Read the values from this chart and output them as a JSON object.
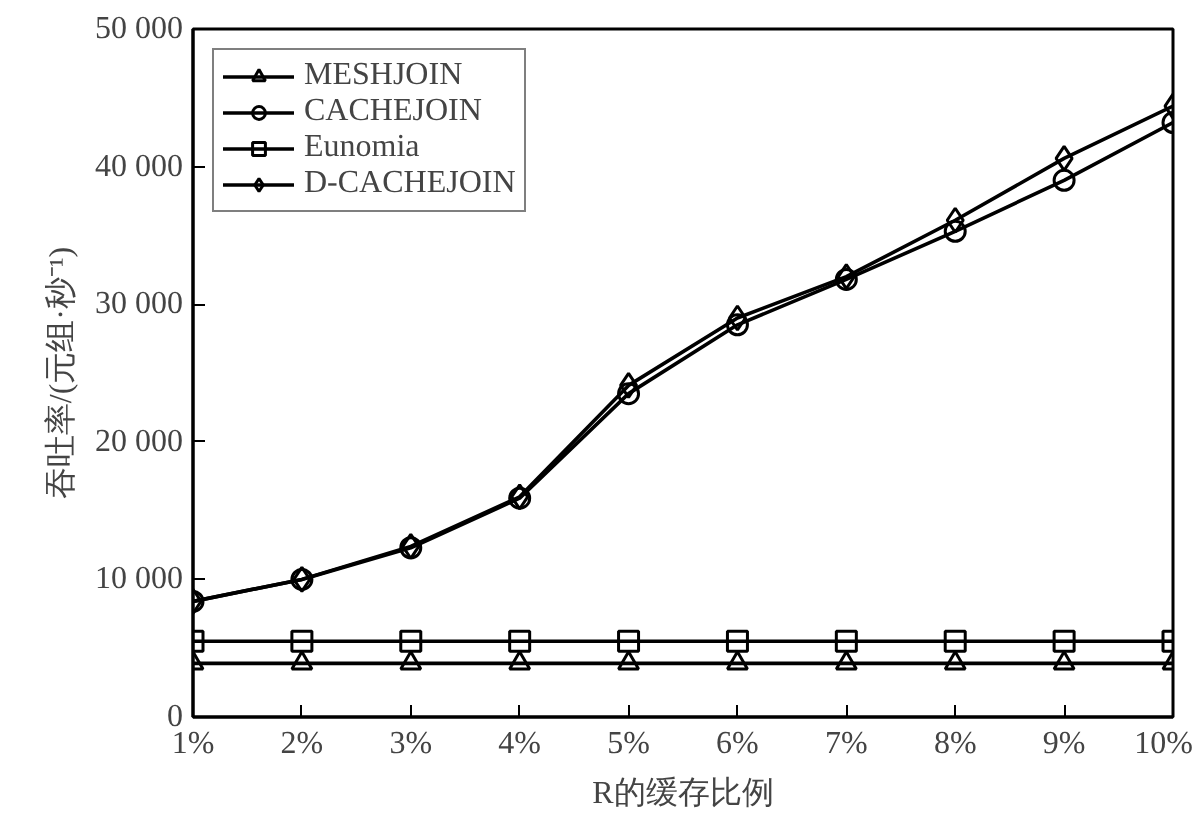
{
  "chart_data": {
    "type": "line",
    "xlabel": "R的缓存比例",
    "ylabel": "吞吐率/(元组·秒⁻¹)",
    "categories": [
      "1%",
      "2%",
      "3%",
      "4%",
      "5%",
      "6%",
      "7%",
      "8%",
      "9%",
      "10%"
    ],
    "ylim": [
      0,
      50000
    ],
    "yticks": [
      0,
      {
        "value": 10000,
        "label": "10 000"
      },
      {
        "value": 20000,
        "label": "20 000"
      },
      {
        "value": 30000,
        "label": "30 000"
      },
      {
        "value": 40000,
        "label": "40 000"
      },
      {
        "value": 50000,
        "label": "50 000"
      }
    ],
    "grid": false,
    "legend": "top left",
    "line_style": "solid",
    "series": [
      {
        "name": "MESHJOIN",
        "color": "#000000",
        "marker": "triangle",
        "values": [
          3900,
          3900,
          3900,
          3900,
          3900,
          3900,
          3900,
          3900,
          3900,
          3900
        ]
      },
      {
        "name": "CACHEJOIN",
        "color": "#000000",
        "marker": "circle",
        "values": [
          8400,
          10000,
          12300,
          15900,
          23500,
          28500,
          31800,
          35300,
          39000,
          43200
        ]
      },
      {
        "name": "Eunomia",
        "color": "#000000",
        "marker": "square",
        "values": [
          5500,
          5500,
          5500,
          5500,
          5500,
          5500,
          5500,
          5500,
          5500,
          5500
        ]
      },
      {
        "name": "D-CACHEJOIN",
        "color": "#000000",
        "marker": "diamond",
        "values": [
          8400,
          10000,
          12400,
          16000,
          24100,
          29000,
          32000,
          36100,
          40600,
          44400
        ]
      }
    ]
  }
}
